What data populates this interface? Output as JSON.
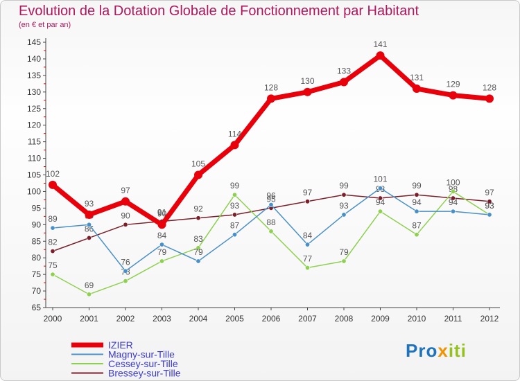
{
  "title": "Evolution de la Dotation Globale de Fonctionnement par Habitant",
  "subtitle": "(en € et par an)",
  "logo": {
    "text": "Proxiti",
    "colors": [
      "#1e73be",
      "#f39200",
      "#95c11f"
    ]
  },
  "chart_data": {
    "type": "line",
    "title": "Evolution de la Dotation Globale de Fonctionnement par Habitant",
    "subtitle": "(en € et par an)",
    "xlabel": "",
    "ylabel": "",
    "ylim": [
      65,
      145
    ],
    "ytick_step": 5,
    "grid": false,
    "legend_position": "bottom-left",
    "x": [
      "2000",
      "2001",
      "2002",
      "2003",
      "2004",
      "2005",
      "2006",
      "2007",
      "2008",
      "2009",
      "2010",
      "2011",
      "2012"
    ],
    "yticks": [
      "65",
      "70",
      "75",
      "80",
      "85",
      "90",
      "95",
      "100",
      "105",
      "110",
      "115",
      "120",
      "125",
      "130",
      "135",
      "140",
      "145"
    ],
    "series": [
      {
        "name": "IZIER",
        "color": "#e8000b",
        "values": [
          102,
          93,
          97,
          90,
          105,
          114,
          128,
          130,
          133,
          141,
          131,
          129,
          128
        ],
        "labels": [
          "102",
          "93",
          "97",
          "90",
          "105",
          "114",
          "128",
          "130",
          "133",
          "141",
          "131",
          "129",
          "128"
        ]
      },
      {
        "name": "Magny-sur-Tille",
        "color": "#4a90c8",
        "values": [
          89,
          90,
          76,
          84,
          79,
          87,
          96,
          84,
          93,
          101,
          94,
          94,
          93
        ],
        "labels": [
          "89",
          "90",
          "76",
          "84",
          "79",
          "87",
          "96",
          "84",
          "93",
          "101",
          "94",
          "94",
          "93"
        ]
      },
      {
        "name": "Cessey-sur-Tille",
        "color": "#8ed050",
        "values": [
          75,
          69,
          73,
          79,
          83,
          99,
          88,
          77,
          79,
          94,
          87,
          100,
          93
        ],
        "labels": [
          "75",
          "69",
          "73",
          "79",
          "83",
          "99",
          "88",
          "77",
          "79",
          "94",
          "87",
          "100",
          "93"
        ]
      },
      {
        "name": "Bressey-sur-Tille",
        "color": "#7a1f2a",
        "values": [
          82,
          86,
          90,
          91,
          92,
          93,
          95,
          97,
          99,
          98,
          99,
          98,
          97
        ],
        "labels": [
          "82",
          "86",
          "90",
          "91",
          "92",
          "93",
          "95",
          "97",
          "99",
          "98",
          "99",
          "98",
          "97"
        ]
      }
    ]
  }
}
